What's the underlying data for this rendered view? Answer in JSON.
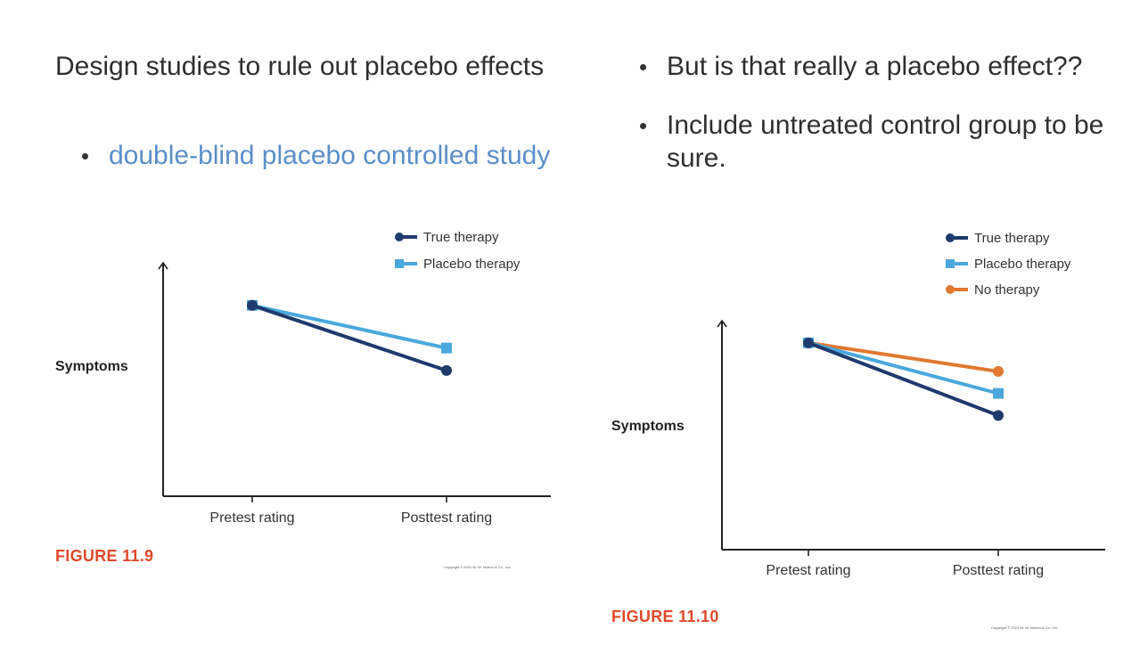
{
  "slide": {
    "left": {
      "heading": "Design studies to rule out placebo effects",
      "bullets": [
        "double-blind placebo controlled study"
      ]
    },
    "right": {
      "bullets": [
        "But is that really a placebo effect??",
        "Include untreated control group to be sure."
      ]
    }
  },
  "figures": [
    {
      "figure_label": "FIGURE 11.9",
      "copyright": "Copyright © 2021 W. W. Norton & Co., Inc."
    },
    {
      "figure_label": "FIGURE 11.10",
      "copyright": "Copyright © 2021 W. W. Norton & Co., Inc."
    }
  ],
  "chart_data": [
    {
      "type": "line",
      "categories": [
        "Pretest rating",
        "Posttest rating"
      ],
      "ylabel": "Symptoms",
      "ylim": [
        0,
        10
      ],
      "legend_position": "top-right",
      "series": [
        {
          "name": "True therapy",
          "values": [
            8.5,
            5.6
          ],
          "color": "#1f3a6d",
          "marker": "circle"
        },
        {
          "name": "Placebo therapy",
          "values": [
            8.5,
            6.6
          ],
          "color": "#4aa8dc",
          "marker": "square"
        }
      ]
    },
    {
      "type": "line",
      "categories": [
        "Pretest rating",
        "Posttest rating"
      ],
      "ylabel": "Symptoms",
      "ylim": [
        0,
        10
      ],
      "legend_position": "top-right",
      "series": [
        {
          "name": "True therapy",
          "values": [
            9.4,
            6.1
          ],
          "color": "#1f3a6d",
          "marker": "circle"
        },
        {
          "name": "Placebo therapy",
          "values": [
            9.4,
            7.1
          ],
          "color": "#4aa8dc",
          "marker": "square"
        },
        {
          "name": "No therapy",
          "values": [
            9.4,
            8.1
          ],
          "color": "#e0782f",
          "marker": "circle"
        }
      ]
    }
  ]
}
